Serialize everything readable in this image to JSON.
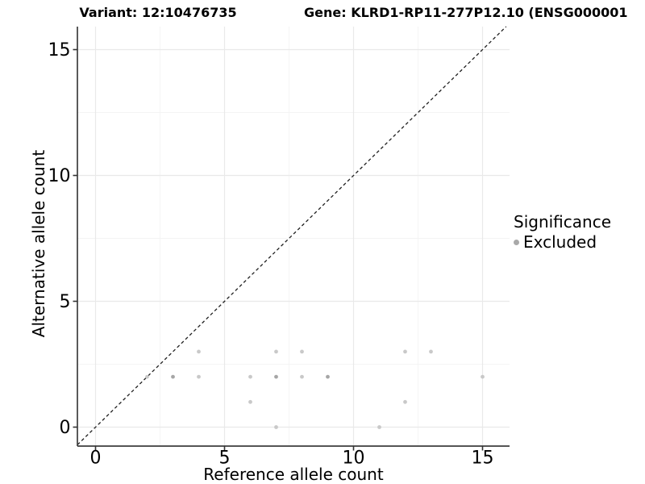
{
  "figure": {
    "title_variant": "Variant: 12:10476735",
    "title_gene": "Gene: KLRD1-RP11-277P12.10 (ENSG000001",
    "background": "#ffffff"
  },
  "chart_data": {
    "type": "scatter",
    "title_left": "Variant: 12:10476735",
    "title_right": "Gene: KLRD1-RP11-277P12.10 (ENSG000001",
    "xlabel": "Reference allele count",
    "ylabel": "Alternative allele count",
    "xlim": [
      -0.7,
      16.05
    ],
    "ylim": [
      -0.75,
      15.9
    ],
    "x_ticks": [
      0,
      5,
      10,
      15
    ],
    "y_ticks": [
      0,
      5,
      10,
      15
    ],
    "x_minor_ticks": [
      2.5,
      7.5,
      12.5
    ],
    "y_minor_ticks": [
      2.5,
      7.5,
      12.5
    ],
    "grid": "on",
    "reference_line": {
      "kind": "identity",
      "slope": 1,
      "intercept": 0,
      "style": "dashed",
      "color": "#1f1f1f"
    },
    "series": [
      {
        "name": "Excluded",
        "points": [
          {
            "x": 2,
            "y": 2,
            "shade": "light"
          },
          {
            "x": 3,
            "y": 2,
            "shade": "dark"
          },
          {
            "x": 4,
            "y": 2,
            "shade": "light"
          },
          {
            "x": 4,
            "y": 3,
            "shade": "light"
          },
          {
            "x": 6,
            "y": 1,
            "shade": "light"
          },
          {
            "x": 6,
            "y": 2,
            "shade": "light"
          },
          {
            "x": 7,
            "y": 0,
            "shade": "light"
          },
          {
            "x": 7,
            "y": 2,
            "shade": "dark"
          },
          {
            "x": 7,
            "y": 3,
            "shade": "light"
          },
          {
            "x": 8,
            "y": 2,
            "shade": "light"
          },
          {
            "x": 8,
            "y": 3,
            "shade": "light"
          },
          {
            "x": 9,
            "y": 2,
            "shade": "dark"
          },
          {
            "x": 11,
            "y": 0,
            "shade": "light"
          },
          {
            "x": 12,
            "y": 1,
            "shade": "light"
          },
          {
            "x": 12,
            "y": 3,
            "shade": "light"
          },
          {
            "x": 13,
            "y": 3,
            "shade": "light"
          },
          {
            "x": 15,
            "y": 2,
            "shade": "light"
          }
        ]
      }
    ],
    "colors": {
      "point_light": "#c9c9c9",
      "point_dark": "#a6a6a6",
      "legend_key": "#a9a9a9",
      "grid_major": "#e9e9e9",
      "grid_minor": "#f4f4f4",
      "axis_line": "#3d3d3d",
      "tick_mark": "#333333",
      "tick_label": "#000000"
    },
    "legend_position": "right"
  },
  "legend": {
    "title": "Significance",
    "items": [
      {
        "label": "Excluded",
        "color": "#a9a9a9"
      }
    ]
  }
}
